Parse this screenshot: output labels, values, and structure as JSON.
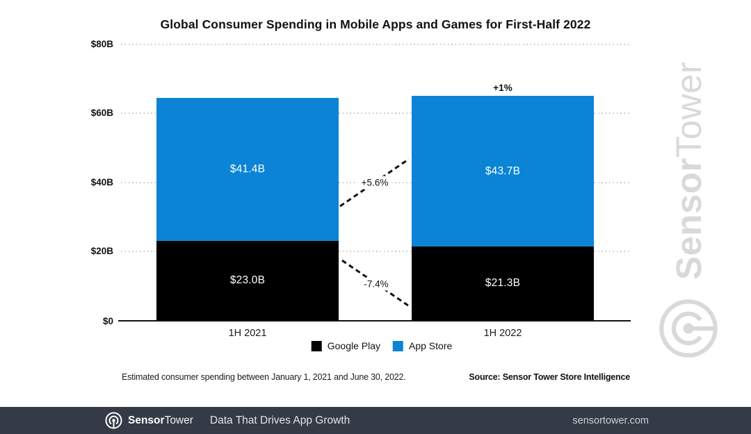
{
  "title": "Global Consumer Spending in Mobile Apps and Games for First-Half 2022",
  "chart_data": {
    "type": "stacked-bar",
    "categories": [
      "1H 2021",
      "1H 2022"
    ],
    "series": [
      {
        "name": "Google Play",
        "color": "#000000",
        "values": [
          23.0,
          21.3
        ],
        "labels": [
          "$23.0B",
          "$21.3B"
        ]
      },
      {
        "name": "App Store",
        "color": "#0b84d5",
        "values": [
          41.4,
          43.7
        ],
        "labels": [
          "$41.4B",
          "$43.7B"
        ]
      }
    ],
    "total_change_label": "+1%",
    "app_store_change_label": "+5.6%",
    "google_play_change_label": "-7.4%",
    "y_ticks": [
      "$80B",
      "$60B",
      "$40B",
      "$20B",
      "$0"
    ],
    "ylim": [
      0,
      80
    ],
    "grid": "dotted-horizontal",
    "legend_position": "bottom-center"
  },
  "footnote": "Estimated consumer spending between January 1, 2021 and June 30, 2022.",
  "source": "Source: Sensor Tower Store Intelligence",
  "watermark": {
    "brand_bold": "Sensor",
    "brand_regular": "Tower"
  },
  "footer": {
    "brand_bold": "Sensor",
    "brand_regular": "Tower",
    "tagline": "Data That Drives App Growth",
    "website": "sensortower.com"
  },
  "colors": {
    "app_store_blue": "#0b84d5",
    "google_play_black": "#000000",
    "footer_bg": "#343a46",
    "watermark_gray": "#d9d9d9"
  }
}
